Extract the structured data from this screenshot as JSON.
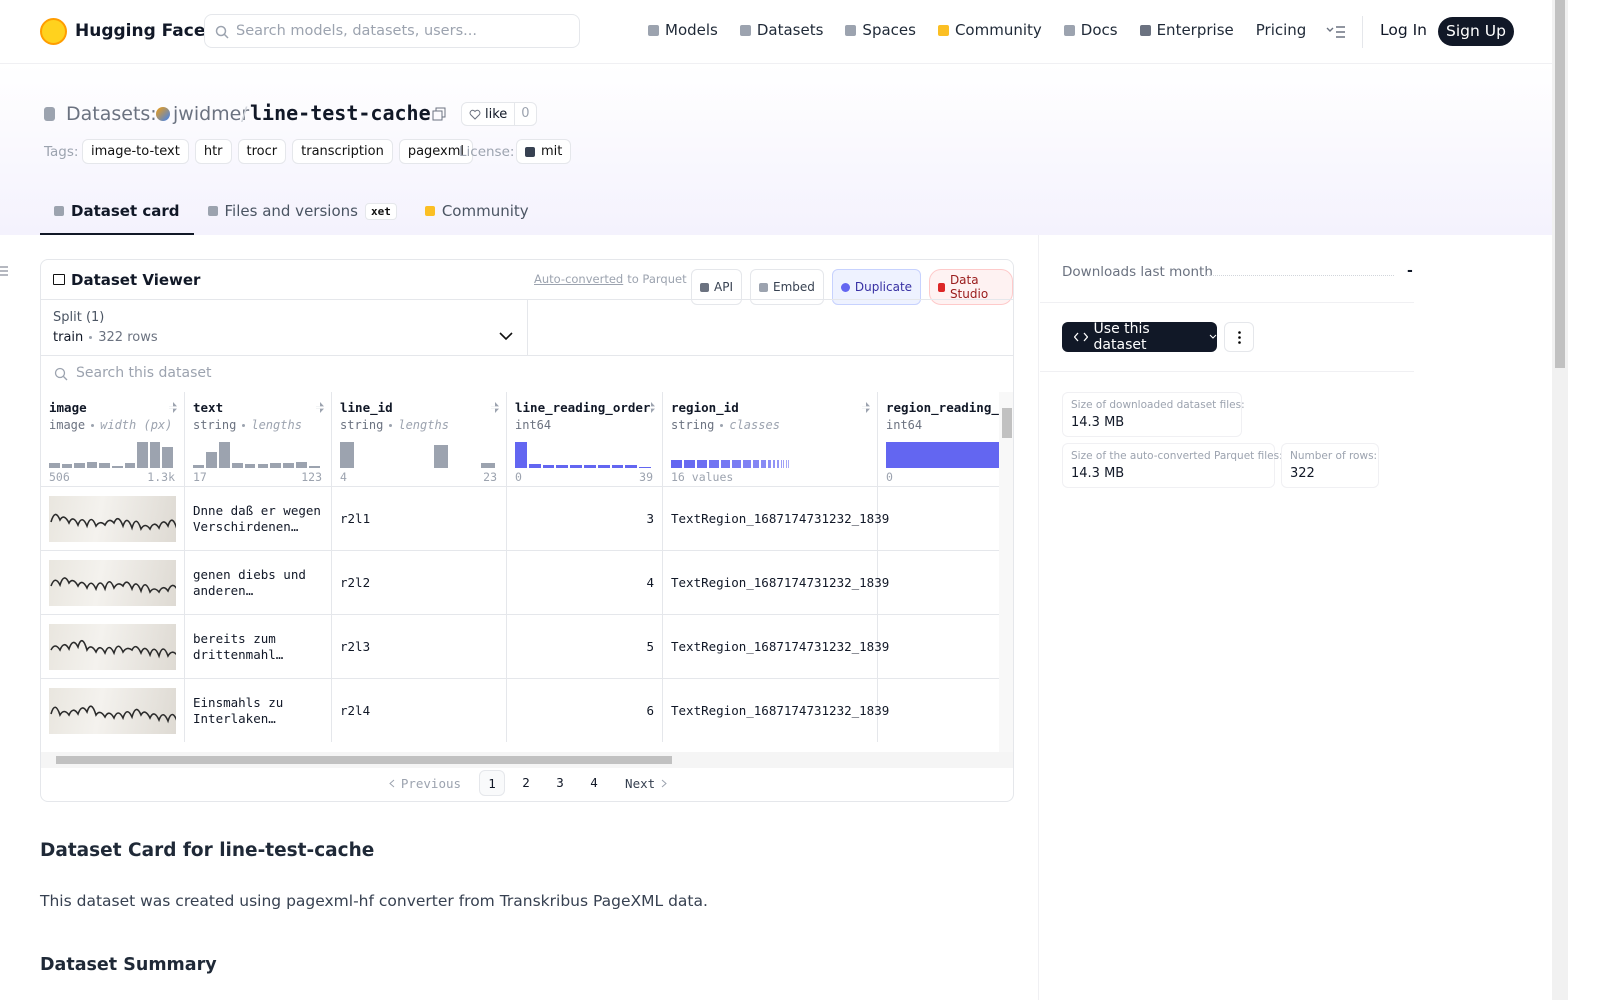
{
  "nav": {
    "brand": "Hugging Face",
    "search_placeholder": "Search models, datasets, users...",
    "links": [
      "Models",
      "Datasets",
      "Spaces",
      "Community",
      "Docs",
      "Enterprise",
      "Pricing"
    ],
    "login": "Log In",
    "signup": "Sign Up"
  },
  "header": {
    "section": "Datasets:",
    "owner": "jwidmer",
    "separator": "/",
    "name": "line-test-cache",
    "like": "like",
    "like_count": 0,
    "tags_label": "Tags:",
    "tags": [
      "image-to-text",
      "htr",
      "trocr",
      "transcription",
      "pagexml"
    ],
    "license_label": "License:",
    "license": "mit"
  },
  "tabs": {
    "items": [
      "Dataset card",
      "Files and versions",
      "Community"
    ],
    "xet_badge": "xet"
  },
  "viewer": {
    "title": "Dataset Viewer",
    "auto_converted": "Auto-converted",
    "to_parquet": "to Parquet",
    "actions": [
      "API",
      "Embed",
      "Duplicate",
      "Data Studio"
    ],
    "split_label": "Split (1)",
    "split_name": "train",
    "split_rows": "322 rows",
    "search_placeholder": "Search this dataset",
    "columns": [
      {
        "name": "image",
        "type": "image",
        "stat": "width (px)",
        "range": [
          506,
          "1.3k"
        ],
        "histogram": [
          0.2,
          0.15,
          0.2,
          0.25,
          0.2,
          0.08,
          0.2,
          1,
          1,
          0.8
        ]
      },
      {
        "name": "text",
        "type": "string",
        "stat": "lengths",
        "range": [
          17,
          123
        ],
        "histogram": [
          0.12,
          0.6,
          1,
          0.2,
          0.15,
          0.15,
          0.2,
          0.2,
          0.25,
          0.08
        ]
      },
      {
        "name": "line_id",
        "type": "string",
        "stat": "lengths",
        "range": [
          4,
          23
        ],
        "histogram": [
          1,
          0,
          0,
          0,
          0,
          0,
          0.9,
          0,
          0,
          0.2
        ]
      },
      {
        "name": "line_reading_order",
        "type": "int64",
        "range": [
          0,
          39
        ],
        "histogram": [
          1,
          0.15,
          0.12,
          0.12,
          0.12,
          0.12,
          0.12,
          0.12,
          0.12,
          0.05
        ]
      },
      {
        "name": "region_id",
        "type": "string",
        "stat": "classes",
        "range": [
          "16 values"
        ],
        "histogram": [
          0.11,
          0.11,
          0.1,
          0.1,
          0.1,
          0.09,
          0.08,
          0.07,
          0.06,
          0.04,
          0.04,
          0.03,
          0.02,
          0.02,
          0.02,
          0.01
        ]
      },
      {
        "name": "region_reading_order",
        "type": "int64",
        "range": [
          0
        ],
        "histogram": [
          1
        ]
      }
    ],
    "rows": [
      {
        "text": "Dnne daß er wegen Verschirdenen…",
        "line_id": "r2l1",
        "line_reading_order": 3,
        "region_id": "TextRegion_1687174731232_1839"
      },
      {
        "text": "genen diebs und anderen schlimmen…",
        "line_id": "r2l2",
        "line_reading_order": 4,
        "region_id": "TextRegion_1687174731232_1839"
      },
      {
        "text": "bereits zum drittenmahl alhier…",
        "line_id": "r2l3",
        "line_reading_order": 5,
        "region_id": "TextRegion_1687174731232_1839"
      },
      {
        "text": "Einsmahls zu Interlaken gefange…",
        "line_id": "r2l4",
        "line_reading_order": 6,
        "region_id": "TextRegion_1687174731232_1839"
      }
    ],
    "pagination": {
      "previous": "Previous",
      "pages": [
        1,
        2,
        3,
        4
      ],
      "current": 1,
      "next": "Next"
    }
  },
  "sidebar": {
    "downloads_label": "Downloads last month",
    "downloads_value": "-",
    "use_button": "Use this dataset",
    "stats": [
      {
        "label": "Size of downloaded dataset files:",
        "value": "14.3 MB"
      },
      {
        "label": "Size of the auto-converted Parquet files:",
        "value": "14.3 MB"
      },
      {
        "label": "Number of rows:",
        "value": 322
      }
    ]
  },
  "card": {
    "title": "Dataset Card for line-test-cache",
    "intro": "This dataset was created using pagexml-hf converter from Transkribus PageXML data.",
    "summary_heading": "Dataset Summary"
  }
}
